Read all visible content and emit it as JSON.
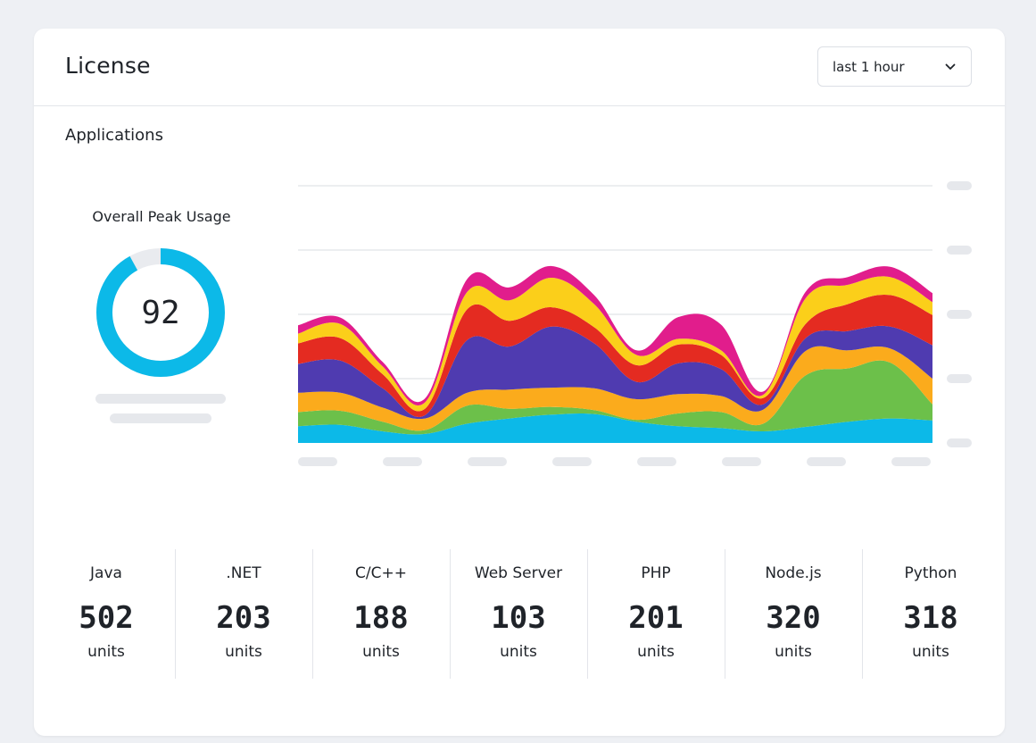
{
  "card": {
    "title": "License",
    "time_select": {
      "value": "last 1 hour",
      "icon": "chevron-down-icon"
    }
  },
  "section": {
    "title": "Applications"
  },
  "peak_usage": {
    "label": "Overall Peak Usage",
    "value": "92",
    "percent": 92,
    "color": "#0cb9e8",
    "track_color": "#e9ebef"
  },
  "stats": [
    {
      "name": "Java",
      "value": "502",
      "unit": "units"
    },
    {
      "name": ".NET",
      "value": "203",
      "unit": "units"
    },
    {
      "name": "C/C++",
      "value": "188",
      "unit": "units"
    },
    {
      "name": "Web Server",
      "value": "103",
      "unit": "units"
    },
    {
      "name": "PHP",
      "value": "201",
      "unit": "units"
    },
    {
      "name": "Node.js",
      "value": "320",
      "unit": "units"
    },
    {
      "name": "Python",
      "value": "318",
      "unit": "units"
    }
  ],
  "chart_data": {
    "type": "area",
    "stacked": true,
    "title": "",
    "xlabel": "",
    "ylabel": "",
    "ylim": [
      0,
      4
    ],
    "grid": true,
    "x": [
      0,
      1,
      2,
      3,
      4,
      5,
      6,
      7,
      8,
      9,
      10,
      11,
      12,
      13,
      14,
      15
    ],
    "series": [
      {
        "color": "#0cb9e8",
        "values": [
          0.26,
          0.28,
          0.18,
          0.14,
          0.3,
          0.38,
          0.44,
          0.45,
          0.33,
          0.26,
          0.23,
          0.18,
          0.25,
          0.33,
          0.38,
          0.35
        ]
      },
      {
        "color": "#6cc04a",
        "values": [
          0.22,
          0.22,
          0.15,
          0.06,
          0.28,
          0.15,
          0.12,
          0.06,
          0.03,
          0.2,
          0.25,
          0.12,
          0.8,
          0.83,
          0.87,
          0.25
        ]
      },
      {
        "color": "#fbab1c",
        "values": [
          0.3,
          0.28,
          0.22,
          0.18,
          0.2,
          0.3,
          0.3,
          0.34,
          0.32,
          0.3,
          0.25,
          0.22,
          0.38,
          0.28,
          0.22,
          0.4
        ]
      },
      {
        "color": "#4f3bb0",
        "values": [
          0.45,
          0.5,
          0.3,
          0.05,
          0.82,
          0.67,
          0.95,
          0.7,
          0.27,
          0.48,
          0.42,
          0.08,
          0.2,
          0.3,
          0.34,
          0.52
        ]
      },
      {
        "color": "#e42b21",
        "values": [
          0.32,
          0.35,
          0.22,
          0.1,
          0.48,
          0.4,
          0.3,
          0.25,
          0.26,
          0.29,
          0.22,
          0.1,
          0.22,
          0.42,
          0.49,
          0.47
        ]
      },
      {
        "color": "#fbcf1a",
        "values": [
          0.15,
          0.22,
          0.12,
          0.1,
          0.27,
          0.32,
          0.46,
          0.36,
          0.16,
          0.09,
          0.07,
          0.05,
          0.4,
          0.3,
          0.28,
          0.2
        ]
      },
      {
        "color": "#e11d8c",
        "values": [
          0.13,
          0.1,
          0.07,
          0.06,
          0.2,
          0.2,
          0.18,
          0.14,
          0.07,
          0.34,
          0.4,
          0.05,
          0.1,
          0.12,
          0.16,
          0.14
        ]
      }
    ]
  }
}
